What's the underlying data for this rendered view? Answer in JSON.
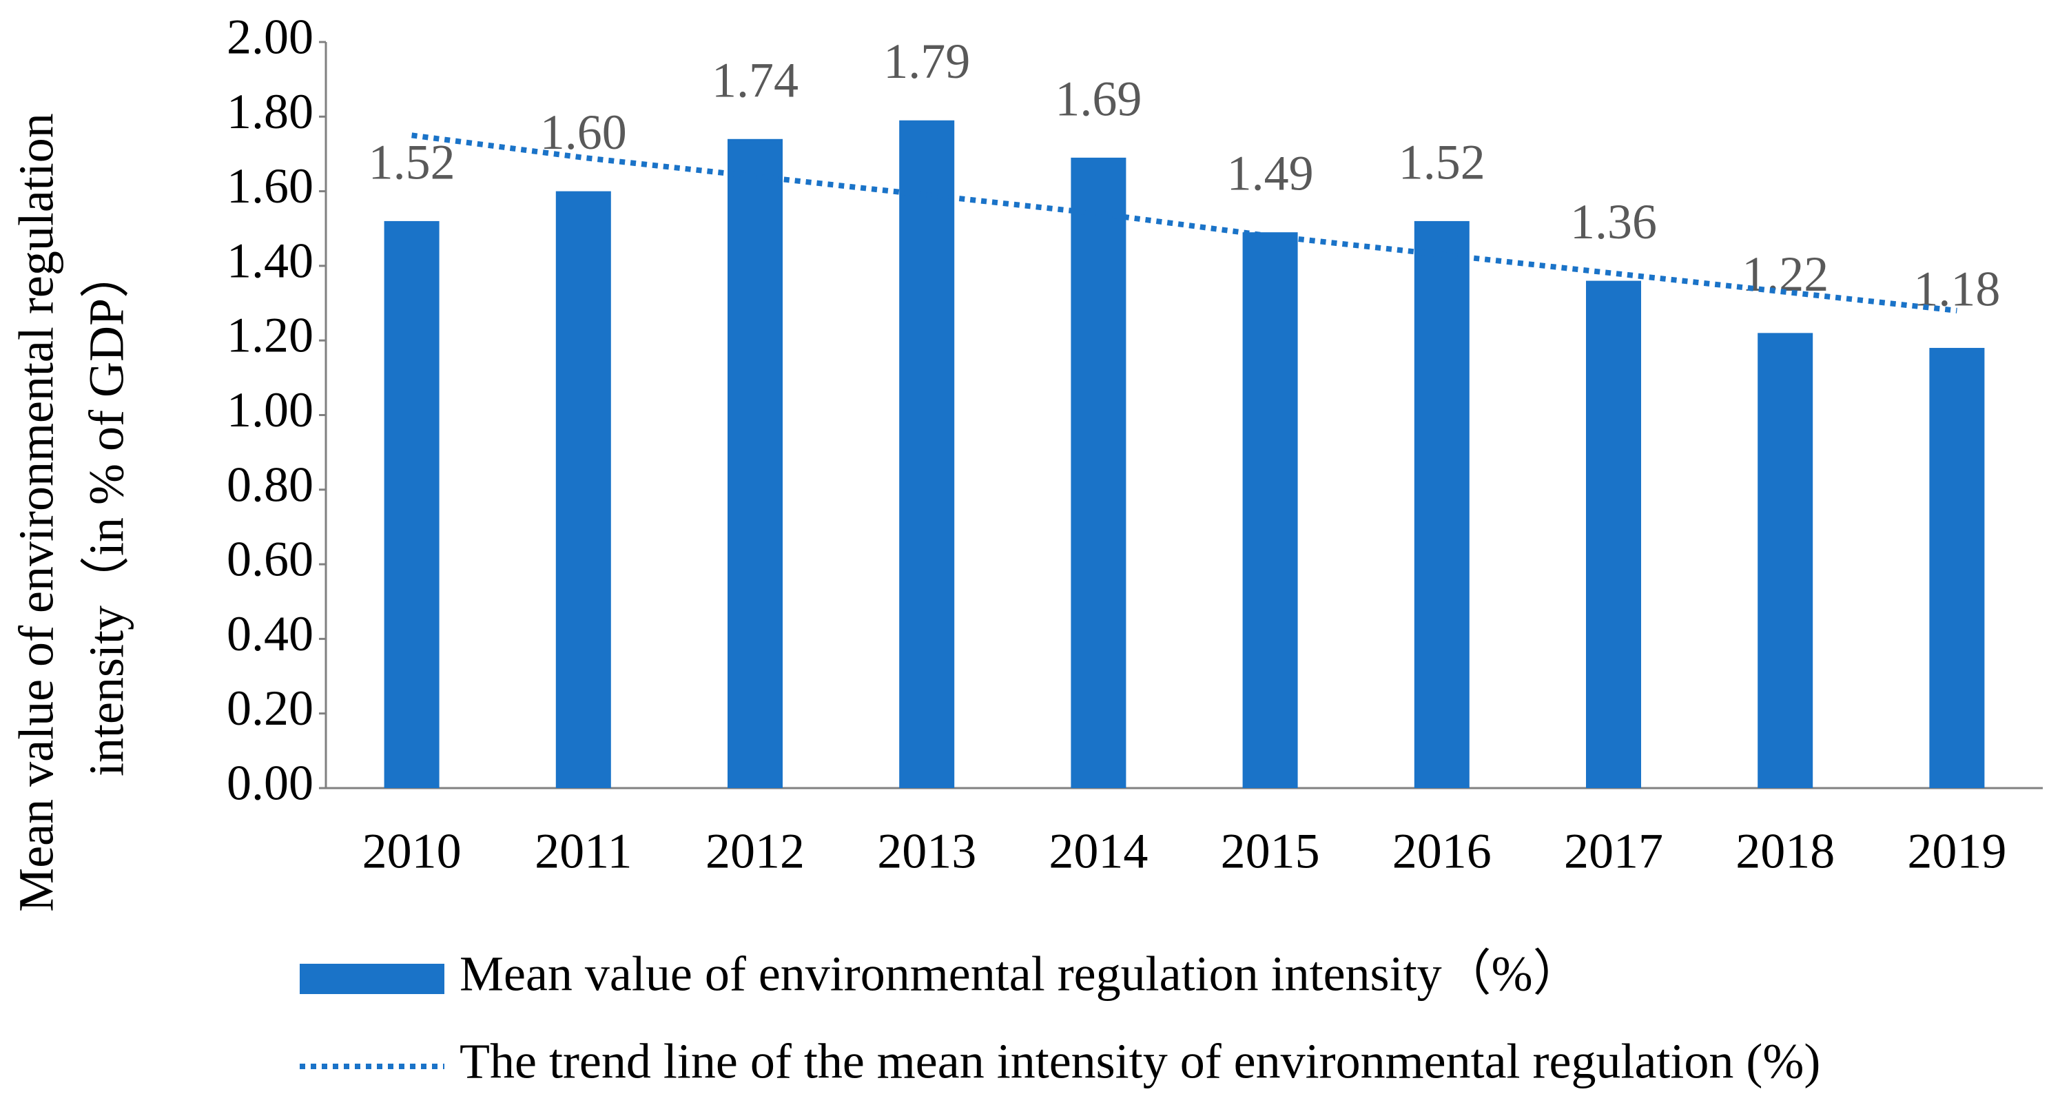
{
  "chart_data": {
    "type": "bar",
    "y_label": [
      "Mean value of environmental regulation",
      "intensity（in % of GDP）"
    ],
    "categories": [
      "2010",
      "2011",
      "2012",
      "2013",
      "2014",
      "2015",
      "2016",
      "2017",
      "2018",
      "2019"
    ],
    "series": [
      {
        "name": "Mean value of environmental regulation intensity（%）",
        "type": "bar",
        "color": "#1a73c8",
        "values": [
          1.52,
          1.6,
          1.74,
          1.79,
          1.69,
          1.49,
          1.52,
          1.36,
          1.22,
          1.18
        ],
        "value_labels": [
          "1.52",
          "1.60",
          "1.74",
          "1.79",
          "1.69",
          "1.49",
          "1.52",
          "1.36",
          "1.22",
          "1.18"
        ]
      },
      {
        "name": "The trend line of the mean intensity of environmental regulation (%)",
        "type": "line",
        "style": "dotted",
        "color": "#1a73c8",
        "values": [
          1.75,
          1.69,
          1.64,
          1.59,
          1.54,
          1.48,
          1.43,
          1.38,
          1.33,
          1.28
        ]
      }
    ],
    "ylim": [
      0,
      2
    ],
    "yticks": [
      {
        "value": 0,
        "label": "0.00"
      },
      {
        "value": 0.2,
        "label": "0.20"
      },
      {
        "value": 0.4,
        "label": "0.40"
      },
      {
        "value": 0.6,
        "label": "0.60"
      },
      {
        "value": 0.8,
        "label": "0.80"
      },
      {
        "value": 1,
        "label": "1.00"
      },
      {
        "value": 1.2,
        "label": "1.20"
      },
      {
        "value": 1.4,
        "label": "1.40"
      },
      {
        "value": 1.6,
        "label": "1.60"
      },
      {
        "value": 1.8,
        "label": "1.80"
      },
      {
        "value": 2,
        "label": "2.00"
      }
    ],
    "grid": false,
    "legend": "bottom"
  }
}
